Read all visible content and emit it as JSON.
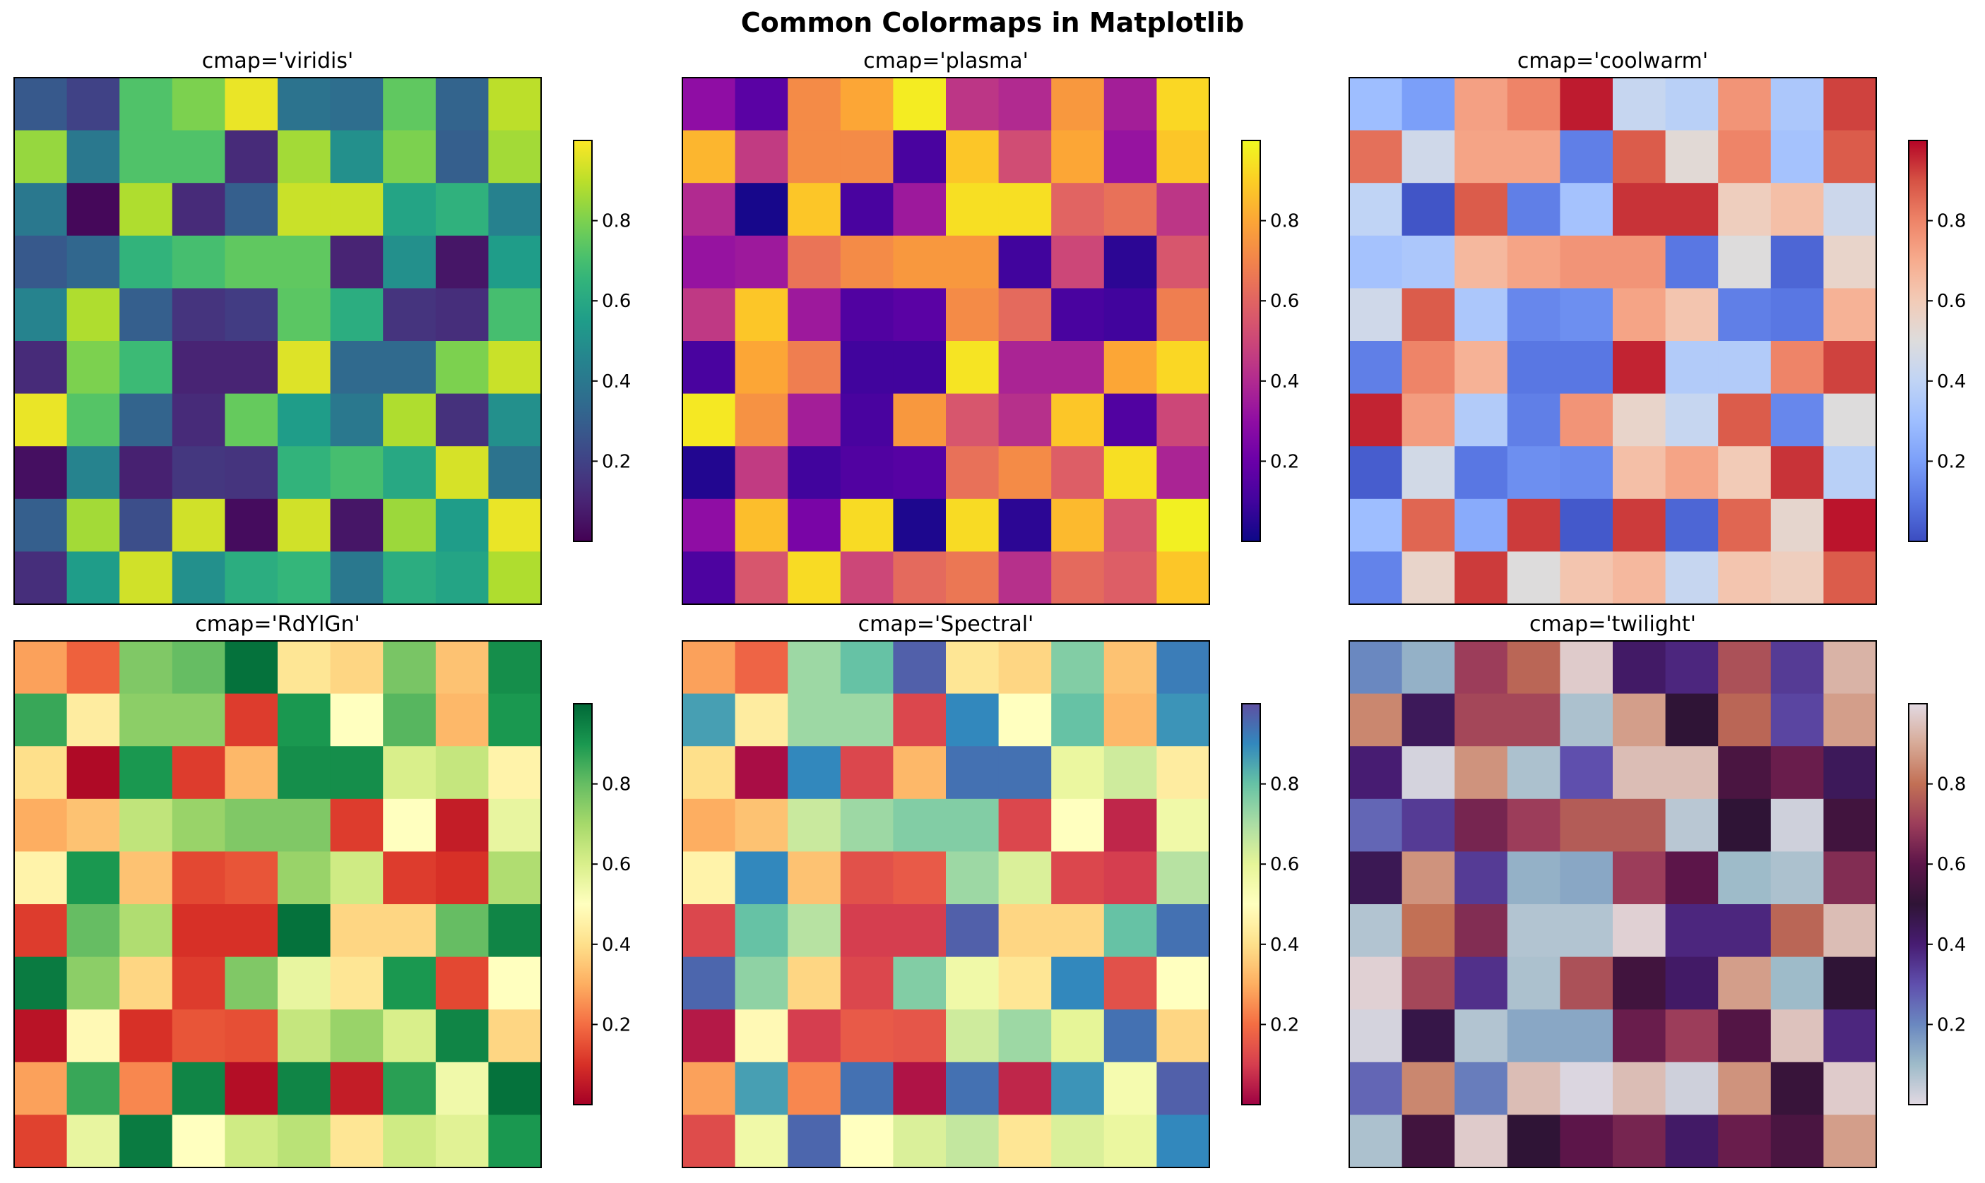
{
  "figure": {
    "title": "Common Colormaps in Matplotlib"
  },
  "chart_data": [
    {
      "type": "heatmap",
      "title": "cmap='viridis'",
      "cmap": "viridis",
      "colorbar_ticks": [
        "0.2",
        "0.4",
        "0.6",
        "0.8"
      ],
      "vmin": 0,
      "vmax": 1,
      "values": [
        [
          0.28,
          0.2,
          0.72,
          0.8,
          0.97,
          0.38,
          0.36,
          0.75,
          0.32,
          0.9
        ],
        [
          0.84,
          0.4,
          0.72,
          0.72,
          0.12,
          0.86,
          0.5,
          0.8,
          0.3,
          0.86
        ],
        [
          0.4,
          0.02,
          0.88,
          0.12,
          0.3,
          0.92,
          0.92,
          0.58,
          0.64,
          0.44
        ],
        [
          0.28,
          0.33,
          0.65,
          0.7,
          0.75,
          0.75,
          0.1,
          0.5,
          0.06,
          0.55
        ],
        [
          0.45,
          0.88,
          0.3,
          0.15,
          0.18,
          0.74,
          0.62,
          0.15,
          0.13,
          0.7
        ],
        [
          0.12,
          0.8,
          0.68,
          0.1,
          0.1,
          0.95,
          0.34,
          0.34,
          0.8,
          0.92
        ],
        [
          0.97,
          0.73,
          0.32,
          0.12,
          0.76,
          0.55,
          0.4,
          0.88,
          0.14,
          0.5
        ],
        [
          0.04,
          0.45,
          0.09,
          0.16,
          0.15,
          0.65,
          0.7,
          0.6,
          0.94,
          0.38
        ],
        [
          0.3,
          0.86,
          0.24,
          0.93,
          0.03,
          0.93,
          0.06,
          0.85,
          0.55,
          0.97
        ],
        [
          0.13,
          0.55,
          0.93,
          0.5,
          0.62,
          0.66,
          0.4,
          0.62,
          0.58,
          0.88
        ]
      ]
    },
    {
      "type": "heatmap",
      "title": "cmap='plasma'",
      "cmap": "plasma",
      "colorbar_ticks": [
        "0.2",
        "0.4",
        "0.6",
        "0.8"
      ],
      "vmin": 0,
      "vmax": 1,
      "values": [
        [
          0.3,
          0.16,
          0.72,
          0.8,
          0.97,
          0.44,
          0.4,
          0.76,
          0.36,
          0.92
        ],
        [
          0.84,
          0.46,
          0.72,
          0.72,
          0.12,
          0.88,
          0.52,
          0.8,
          0.32,
          0.88
        ],
        [
          0.4,
          0.02,
          0.88,
          0.12,
          0.34,
          0.94,
          0.94,
          0.6,
          0.64,
          0.44
        ],
        [
          0.32,
          0.34,
          0.65,
          0.72,
          0.76,
          0.76,
          0.1,
          0.5,
          0.06,
          0.55
        ],
        [
          0.45,
          0.88,
          0.34,
          0.14,
          0.16,
          0.72,
          0.62,
          0.12,
          0.1,
          0.68
        ],
        [
          0.12,
          0.8,
          0.68,
          0.1,
          0.1,
          0.95,
          0.38,
          0.38,
          0.8,
          0.92
        ],
        [
          0.96,
          0.74,
          0.36,
          0.12,
          0.76,
          0.55,
          0.42,
          0.88,
          0.14,
          0.5
        ],
        [
          0.04,
          0.46,
          0.1,
          0.14,
          0.15,
          0.64,
          0.72,
          0.58,
          0.94,
          0.38
        ],
        [
          0.3,
          0.86,
          0.24,
          0.93,
          0.03,
          0.93,
          0.06,
          0.85,
          0.55,
          0.98
        ],
        [
          0.13,
          0.55,
          0.93,
          0.5,
          0.62,
          0.66,
          0.42,
          0.62,
          0.58,
          0.88
        ]
      ]
    },
    {
      "type": "heatmap",
      "title": "cmap='coolwarm'",
      "cmap": "coolwarm",
      "colorbar_ticks": [
        "0.2",
        "0.4",
        "0.6",
        "0.8"
      ],
      "vmin": 0,
      "vmax": 1,
      "values": [
        [
          0.3,
          0.2,
          0.73,
          0.8,
          0.97,
          0.42,
          0.38,
          0.76,
          0.34,
          0.92
        ],
        [
          0.84,
          0.45,
          0.72,
          0.72,
          0.12,
          0.88,
          0.52,
          0.8,
          0.32,
          0.88
        ],
        [
          0.4,
          0.02,
          0.88,
          0.12,
          0.32,
          0.94,
          0.94,
          0.58,
          0.64,
          0.44
        ],
        [
          0.32,
          0.34,
          0.66,
          0.72,
          0.76,
          0.76,
          0.1,
          0.5,
          0.06,
          0.55
        ],
        [
          0.45,
          0.88,
          0.34,
          0.14,
          0.16,
          0.72,
          0.62,
          0.12,
          0.1,
          0.68
        ],
        [
          0.12,
          0.8,
          0.68,
          0.1,
          0.1,
          0.96,
          0.36,
          0.36,
          0.8,
          0.92
        ],
        [
          0.96,
          0.74,
          0.36,
          0.12,
          0.76,
          0.55,
          0.42,
          0.88,
          0.14,
          0.5
        ],
        [
          0.04,
          0.46,
          0.1,
          0.16,
          0.15,
          0.64,
          0.72,
          0.6,
          0.94,
          0.38
        ],
        [
          0.3,
          0.86,
          0.24,
          0.93,
          0.03,
          0.93,
          0.06,
          0.86,
          0.54,
          0.98
        ],
        [
          0.13,
          0.55,
          0.93,
          0.5,
          0.62,
          0.66,
          0.42,
          0.62,
          0.58,
          0.88
        ]
      ]
    },
    {
      "type": "heatmap",
      "title": "cmap='RdYlGn'",
      "cmap": "RdYlGn",
      "colorbar_ticks": [
        "0.2",
        "0.4",
        "0.6",
        "0.8"
      ],
      "vmin": 0,
      "vmax": 1,
      "values": [
        [
          0.28,
          0.18,
          0.76,
          0.8,
          0.98,
          0.42,
          0.38,
          0.77,
          0.34,
          0.92
        ],
        [
          0.86,
          0.44,
          0.74,
          0.74,
          0.12,
          0.9,
          0.5,
          0.82,
          0.32,
          0.9
        ],
        [
          0.4,
          0.02,
          0.9,
          0.12,
          0.32,
          0.92,
          0.92,
          0.6,
          0.64,
          0.46
        ],
        [
          0.3,
          0.34,
          0.65,
          0.72,
          0.76,
          0.76,
          0.12,
          0.5,
          0.06,
          0.56
        ],
        [
          0.46,
          0.9,
          0.34,
          0.14,
          0.16,
          0.72,
          0.62,
          0.12,
          0.1,
          0.68
        ],
        [
          0.12,
          0.8,
          0.68,
          0.1,
          0.1,
          0.98,
          0.38,
          0.38,
          0.8,
          0.94
        ],
        [
          0.96,
          0.74,
          0.38,
          0.12,
          0.76,
          0.56,
          0.42,
          0.9,
          0.14,
          0.5
        ],
        [
          0.04,
          0.48,
          0.1,
          0.16,
          0.15,
          0.64,
          0.72,
          0.6,
          0.94,
          0.38
        ],
        [
          0.28,
          0.86,
          0.24,
          0.94,
          0.03,
          0.94,
          0.06,
          0.88,
          0.54,
          0.98
        ],
        [
          0.13,
          0.56,
          0.96,
          0.5,
          0.62,
          0.66,
          0.42,
          0.62,
          0.58,
          0.9
        ]
      ]
    },
    {
      "type": "heatmap",
      "title": "cmap='Spectral'",
      "cmap": "Spectral",
      "colorbar_ticks": [
        "0.2",
        "0.4",
        "0.6",
        "0.8"
      ],
      "vmin": 0,
      "vmax": 1,
      "values": [
        [
          0.28,
          0.18,
          0.72,
          0.8,
          0.97,
          0.42,
          0.38,
          0.76,
          0.34,
          0.92
        ],
        [
          0.86,
          0.44,
          0.72,
          0.72,
          0.12,
          0.9,
          0.5,
          0.8,
          0.32,
          0.88
        ],
        [
          0.4,
          0.02,
          0.9,
          0.12,
          0.32,
          0.94,
          0.94,
          0.58,
          0.64,
          0.44
        ],
        [
          0.3,
          0.34,
          0.65,
          0.72,
          0.76,
          0.76,
          0.12,
          0.5,
          0.06,
          0.56
        ],
        [
          0.46,
          0.9,
          0.34,
          0.14,
          0.16,
          0.72,
          0.62,
          0.12,
          0.1,
          0.68
        ],
        [
          0.12,
          0.8,
          0.68,
          0.1,
          0.1,
          0.97,
          0.38,
          0.38,
          0.8,
          0.94
        ],
        [
          0.96,
          0.74,
          0.38,
          0.12,
          0.76,
          0.56,
          0.42,
          0.9,
          0.14,
          0.5
        ],
        [
          0.04,
          0.48,
          0.1,
          0.16,
          0.15,
          0.64,
          0.72,
          0.6,
          0.94,
          0.38
        ],
        [
          0.28,
          0.86,
          0.24,
          0.94,
          0.03,
          0.94,
          0.06,
          0.88,
          0.54,
          0.97
        ],
        [
          0.13,
          0.56,
          0.96,
          0.5,
          0.62,
          0.66,
          0.42,
          0.62,
          0.58,
          0.9
        ]
      ]
    },
    {
      "type": "heatmap",
      "title": "cmap='twilight'",
      "cmap": "twilight",
      "colorbar_ticks": [
        "0.2",
        "0.4",
        "0.6",
        "0.8"
      ],
      "vmin": 0,
      "vmax": 1,
      "values": [
        [
          0.2,
          0.12,
          0.7,
          0.78,
          0.97,
          0.42,
          0.38,
          0.74,
          0.34,
          0.92
        ],
        [
          0.84,
          0.44,
          0.72,
          0.72,
          0.08,
          0.88,
          0.5,
          0.78,
          0.32,
          0.88
        ],
        [
          0.4,
          0.02,
          0.86,
          0.08,
          0.3,
          0.94,
          0.94,
          0.56,
          0.62,
          0.44
        ],
        [
          0.26,
          0.34,
          0.64,
          0.7,
          0.76,
          0.76,
          0.06,
          0.5,
          0.03,
          0.54
        ],
        [
          0.45,
          0.86,
          0.34,
          0.12,
          0.14,
          0.7,
          0.6,
          0.1,
          0.08,
          0.66
        ],
        [
          0.07,
          0.8,
          0.66,
          0.07,
          0.07,
          0.98,
          0.38,
          0.38,
          0.78,
          0.94
        ],
        [
          0.98,
          0.72,
          0.36,
          0.08,
          0.74,
          0.54,
          0.42,
          0.88,
          0.1,
          0.5
        ],
        [
          0.02,
          0.47,
          0.07,
          0.14,
          0.14,
          0.62,
          0.7,
          0.58,
          0.95,
          0.38
        ],
        [
          0.26,
          0.84,
          0.22,
          0.94,
          0.01,
          0.94,
          0.03,
          0.86,
          0.52,
          0.97
        ],
        [
          0.08,
          0.54,
          0.97,
          0.5,
          0.6,
          0.64,
          0.42,
          0.62,
          0.56,
          0.88
        ]
      ]
    }
  ]
}
